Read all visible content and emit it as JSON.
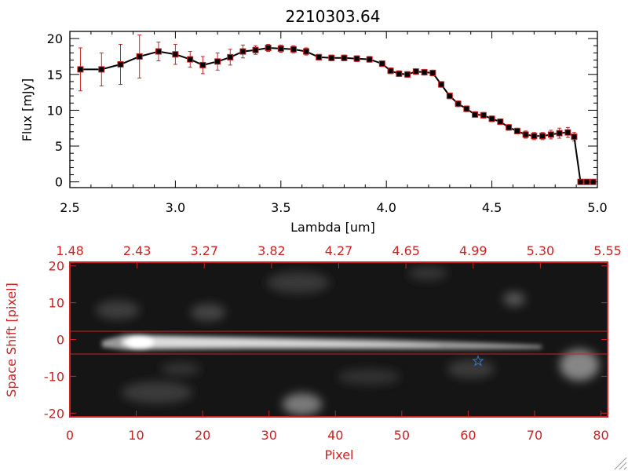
{
  "chart_data": [
    {
      "type": "line",
      "title": "2210303.64",
      "xlabel": "Lambda [um]",
      "ylabel": "Flux [mJy]",
      "xlim": [
        2.5,
        5.0
      ],
      "ylim": [
        -0.8,
        21
      ],
      "x_ticks": [
        "2.5",
        "3.0",
        "3.5",
        "4.0",
        "4.5",
        "5.0"
      ],
      "y_ticks": [
        "0",
        "5",
        "10",
        "15",
        "20"
      ],
      "colors": {
        "line": "#000000",
        "marker": "#000000",
        "error_bar": "#cc2222"
      },
      "series": [
        {
          "x": [
            2.55,
            2.65,
            2.74,
            2.83,
            2.92,
            3.0,
            3.07,
            3.13,
            3.2,
            3.26,
            3.32,
            3.38,
            3.44,
            3.5,
            3.56,
            3.62,
            3.68,
            3.74,
            3.8,
            3.86,
            3.92,
            3.98,
            4.02,
            4.06,
            4.1,
            4.14,
            4.18,
            4.22,
            4.26,
            4.3,
            4.34,
            4.38,
            4.42,
            4.46,
            4.5,
            4.54,
            4.58,
            4.62,
            4.66,
            4.7,
            4.74,
            4.78,
            4.82,
            4.86,
            4.89,
            4.92,
            4.95,
            4.98
          ],
          "y": [
            15.7,
            15.7,
            16.4,
            17.5,
            18.2,
            17.8,
            17.1,
            16.3,
            16.8,
            17.4,
            18.2,
            18.4,
            18.7,
            18.6,
            18.5,
            18.2,
            17.4,
            17.3,
            17.3,
            17.2,
            17.1,
            16.5,
            15.5,
            15.1,
            15.0,
            15.4,
            15.3,
            15.2,
            13.6,
            12.0,
            10.9,
            10.2,
            9.4,
            9.3,
            8.8,
            8.4,
            7.6,
            7.1,
            6.6,
            6.4,
            6.4,
            6.6,
            6.8,
            6.9,
            6.3,
            0.0,
            0.0,
            0.0
          ],
          "yerr": [
            3.0,
            2.3,
            2.8,
            3.0,
            1.3,
            1.4,
            1.1,
            1.2,
            1.2,
            1.1,
            0.9,
            0.6,
            0.5,
            0.5,
            0.5,
            0.5,
            0.4,
            0.4,
            0.4,
            0.4,
            0.4,
            0.4,
            0.4,
            0.4,
            0.4,
            0.4,
            0.4,
            0.4,
            0.4,
            0.4,
            0.4,
            0.4,
            0.4,
            0.4,
            0.4,
            0.4,
            0.4,
            0.4,
            0.5,
            0.5,
            0.5,
            0.6,
            0.7,
            0.7,
            0.6,
            0,
            0,
            0
          ]
        }
      ]
    },
    {
      "type": "heatmap",
      "xlabel": "Pixel",
      "ylabel": "Space Shift [pixel]",
      "xlim": [
        0,
        81
      ],
      "ylim": [
        -21,
        21
      ],
      "x_ticks": [
        "0",
        "10",
        "20",
        "30",
        "40",
        "50",
        "60",
        "70",
        "80"
      ],
      "y_ticks": [
        "20",
        "10",
        "0",
        "-10",
        "-20"
      ],
      "top_ticks": [
        "1.48",
        "2.43",
        "3.27",
        "3.82",
        "4.27",
        "4.65",
        "4.99",
        "5.30",
        "5.55"
      ],
      "extraction_window": [
        -3.2,
        2.6
      ],
      "source_marker": {
        "x": 61.5,
        "y": -5,
        "symbol": "star"
      },
      "colors": {
        "axis": "#cc2222",
        "guide_line": "#cc2222",
        "star": "#3377cc"
      }
    }
  ]
}
